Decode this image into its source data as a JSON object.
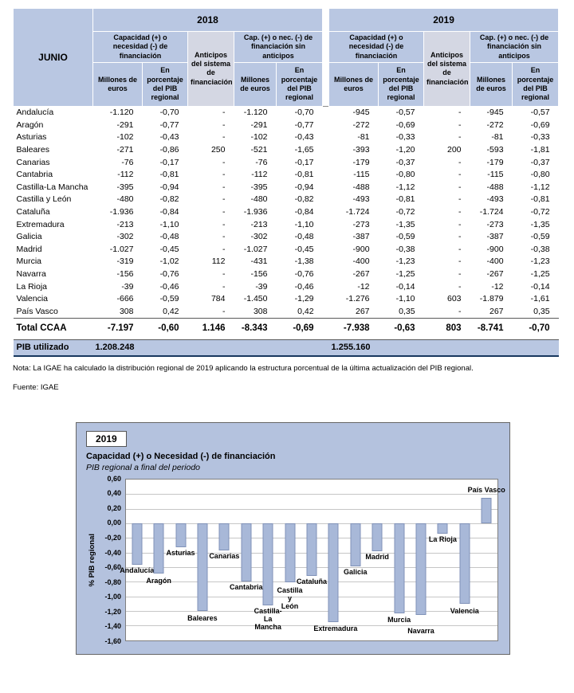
{
  "table": {
    "corner_label": "JUNIO",
    "year_groups": [
      "2018",
      "2019"
    ],
    "group_headers": {
      "capacity": "Capacidad (+) o necesidad (-) de financiación",
      "anticipos": "Anticipos del sistema de financiación",
      "capacity_sin_anticipos": "Cap. (+) o nec. (-) de financiación sin anticipos"
    },
    "sub_headers": {
      "millones": "Millones de euros",
      "porcentaje": "En porcentaje del PIB regional"
    },
    "rows": [
      {
        "region": "Andalucía",
        "values": [
          "-1.120",
          "-0,70",
          "-",
          "-1.120",
          "-0,70",
          "-945",
          "-0,57",
          "-",
          "-945",
          "-0,57"
        ]
      },
      {
        "region": "Aragón",
        "values": [
          "-291",
          "-0,77",
          "-",
          "-291",
          "-0,77",
          "-272",
          "-0,69",
          "-",
          "-272",
          "-0,69"
        ]
      },
      {
        "region": "Asturias",
        "values": [
          "-102",
          "-0,43",
          "-",
          "-102",
          "-0,43",
          "-81",
          "-0,33",
          "-",
          "-81",
          "-0,33"
        ]
      },
      {
        "region": "Baleares",
        "values": [
          "-271",
          "-0,86",
          "250",
          "-521",
          "-1,65",
          "-393",
          "-1,20",
          "200",
          "-593",
          "-1,81"
        ]
      },
      {
        "region": "Canarias",
        "values": [
          "-76",
          "-0,17",
          "-",
          "-76",
          "-0,17",
          "-179",
          "-0,37",
          "-",
          "-179",
          "-0,37"
        ]
      },
      {
        "region": "Cantabria",
        "values": [
          "-112",
          "-0,81",
          "-",
          "-112",
          "-0,81",
          "-115",
          "-0,80",
          "-",
          "-115",
          "-0,80"
        ]
      },
      {
        "region": "Castilla-La Mancha",
        "values": [
          "-395",
          "-0,94",
          "-",
          "-395",
          "-0,94",
          "-488",
          "-1,12",
          "-",
          "-488",
          "-1,12"
        ]
      },
      {
        "region": "Castilla y León",
        "values": [
          "-480",
          "-0,82",
          "-",
          "-480",
          "-0,82",
          "-493",
          "-0,81",
          "-",
          "-493",
          "-0,81"
        ]
      },
      {
        "region": "Cataluña",
        "values": [
          "-1.936",
          "-0,84",
          "-",
          "-1.936",
          "-0,84",
          "-1.724",
          "-0,72",
          "-",
          "-1.724",
          "-0,72"
        ]
      },
      {
        "region": "Extremadura",
        "values": [
          "-213",
          "-1,10",
          "-",
          "-213",
          "-1,10",
          "-273",
          "-1,35",
          "-",
          "-273",
          "-1,35"
        ]
      },
      {
        "region": "Galicia",
        "values": [
          "-302",
          "-0,48",
          "-",
          "-302",
          "-0,48",
          "-387",
          "-0,59",
          "-",
          "-387",
          "-0,59"
        ]
      },
      {
        "region": "Madrid",
        "values": [
          "-1.027",
          "-0,45",
          "-",
          "-1.027",
          "-0,45",
          "-900",
          "-0,38",
          "-",
          "-900",
          "-0,38"
        ]
      },
      {
        "region": "Murcia",
        "values": [
          "-319",
          "-1,02",
          "112",
          "-431",
          "-1,38",
          "-400",
          "-1,23",
          "-",
          "-400",
          "-1,23"
        ]
      },
      {
        "region": "Navarra",
        "values": [
          "-156",
          "-0,76",
          "-",
          "-156",
          "-0,76",
          "-267",
          "-1,25",
          "-",
          "-267",
          "-1,25"
        ]
      },
      {
        "region": "La Rioja",
        "values": [
          "-39",
          "-0,46",
          "-",
          "-39",
          "-0,46",
          "-12",
          "-0,14",
          "-",
          "-12",
          "-0,14"
        ]
      },
      {
        "region": "Valencia",
        "values": [
          "-666",
          "-0,59",
          "784",
          "-1.450",
          "-1,29",
          "-1.276",
          "-1,10",
          "603",
          "-1.879",
          "-1,61"
        ]
      },
      {
        "region": "País Vasco",
        "values": [
          "308",
          "0,42",
          "-",
          "308",
          "0,42",
          "267",
          "0,35",
          "-",
          "267",
          "0,35"
        ]
      }
    ],
    "total_row": {
      "label": "Total CCAA",
      "values": [
        "-7.197",
        "-0,60",
        "1.146",
        "-8.343",
        "-0,69",
        "-7.938",
        "-0,63",
        "803",
        "-8.741",
        "-0,70"
      ]
    },
    "pib_row": {
      "label": "PIB utilizado",
      "pib_2018": "1.208.248",
      "pib_2019": "1.255.160"
    },
    "note": "Nota: La IGAE ha calculado la distribución regional de 2019 aplicando la estructura porcentual de la última actualización del PIB regional.",
    "source": "Fuente: IGAE"
  },
  "chart_data": {
    "type": "bar",
    "year_label": "2019",
    "title": "Capacidad (+) o Necesidad (-) de financiación",
    "subtitle": "PIB regional a final del periodo",
    "ylabel": "% PIB regional",
    "ylim": [
      -1.6,
      0.6
    ],
    "grid": true,
    "legend": "none",
    "ytick_values": [
      0.6,
      0.4,
      0.2,
      0.0,
      -0.2,
      -0.4,
      -0.6,
      -0.8,
      -1.0,
      -1.2,
      -1.4,
      -1.6
    ],
    "ytick_labels": [
      "0,60",
      "0,40",
      "0,20",
      "0,00",
      "-0,20",
      "-0,40",
      "-0,60",
      "-0,80",
      "-1,00",
      "-1,20",
      "-1,40",
      "-1,60"
    ],
    "categories": [
      "Andalucía",
      "Aragón",
      "Asturias",
      "Baleares",
      "Canarias",
      "Cantabria",
      "Castilla-La Mancha",
      "Castilla y León",
      "Cataluña",
      "Extremadura",
      "Galicia",
      "Madrid",
      "Murcia",
      "Navarra",
      "La Rioja",
      "Valencia",
      "País Vasco"
    ],
    "display_labels": [
      "Andalucía",
      "Aragón",
      "Asturias",
      "Baleares",
      "Canarias",
      "Cantabria",
      "Castilla-\nLa\nMancha",
      "Castilla\ny\nLeón",
      "Cataluña",
      "Extremadura",
      "Galicia",
      "Madrid",
      "Murcia",
      "Navarra",
      "La Rioja",
      "Valencia",
      "País Vasco"
    ],
    "values": [
      -0.57,
      -0.69,
      -0.33,
      -1.2,
      -0.37,
      -0.8,
      -1.12,
      -0.81,
      -0.72,
      -1.35,
      -0.59,
      -0.38,
      -1.23,
      -1.25,
      -0.14,
      -1.1,
      0.35
    ],
    "label_dy": [
      3,
      5,
      3,
      5,
      3,
      3,
      3,
      6,
      3,
      4,
      3,
      3,
      4,
      16,
      3,
      5,
      3
    ]
  },
  "colors": {
    "header_blue": "#b9c7e2",
    "anticipos_gray": "#d4d7e3",
    "chart_bg": "#b4c2de",
    "bar_fill": "#a8b8d8",
    "bar_border": "#8092b8",
    "pib_row_border": "#17375e"
  }
}
